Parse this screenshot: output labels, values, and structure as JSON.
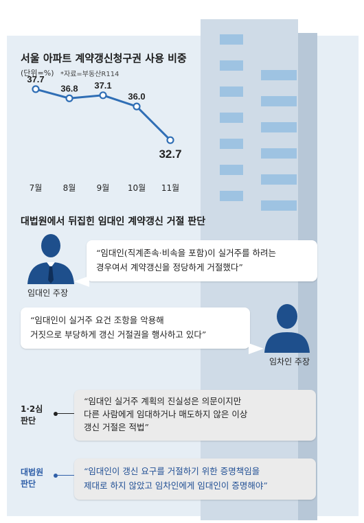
{
  "chart_title": "서울 아파트 계약갱신청구권 사용 비중",
  "unit_label": "(단위=%)",
  "source_label": "*자료=부동산R114",
  "chart_data": {
    "type": "line",
    "title": "서울 아파트 계약갱신청구권 사용 비중",
    "categories": [
      "7월",
      "8월",
      "9월",
      "10월",
      "11월"
    ],
    "values": [
      37.7,
      36.8,
      37.1,
      36.0,
      32.7
    ],
    "value_labels": [
      "37.7",
      "36.8",
      "37.1",
      "36.0",
      "32.7"
    ],
    "ylim": [
      31.5,
      38.5
    ],
    "grid": false,
    "line_color": "#2f6eb5"
  },
  "section_title": "대법원에서 뒤집힌 임대인 계약갱신 거절 판단",
  "landlord": {
    "label": "임대인 주장",
    "quote": [
      "“임대인(직계존속·비속을 포함)이 실거주를 하려는",
      "경우여서 계약갱신을 정당하게 거절했다”"
    ]
  },
  "tenant": {
    "label": "임차인 주장",
    "quote": [
      "“임대인이 실거주 요건 조항을 악용해",
      "거짓으로 부당하게 갱신 거절권을 행사하고 있다”"
    ]
  },
  "lower_court": {
    "label": [
      "1·2심",
      "판단"
    ],
    "quote": [
      "“임대인 실거주 계획의 진실성은 의문이지만",
      "다른 사람에게 임대하거나 매도하지 않은 이상",
      "갱신 거절은 적법”"
    ],
    "color": "#222222"
  },
  "supreme_court": {
    "label": [
      "대법원",
      "판단"
    ],
    "quote": [
      "“임대인이 갱신 요구를 거절하기 위한 증명책임을",
      "제대로 하지 않았고 임차인에게 임대인이 증명해야”"
    ],
    "color": "#2f5fa8"
  },
  "icons": {
    "landlord": "businessman-icon",
    "tenant": "person-silhouette-icon"
  }
}
